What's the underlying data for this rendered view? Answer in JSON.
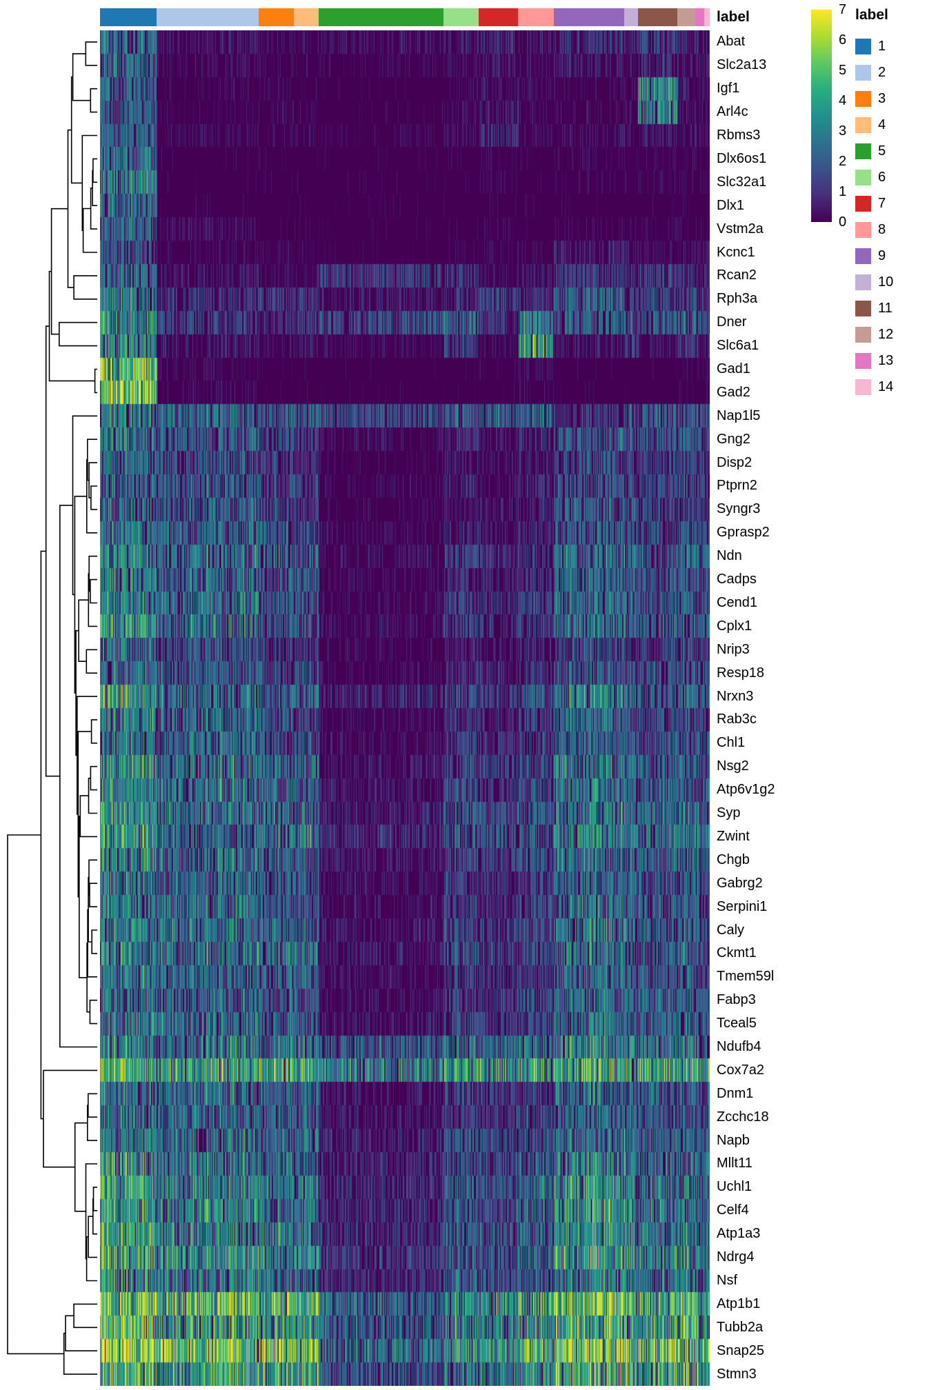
{
  "figure": {
    "annotation_title": "label",
    "legend_title": "label"
  },
  "chart_data": {
    "type": "heatmap",
    "title": "",
    "value_range": [
      0,
      7
    ],
    "colormap": {
      "name": "viridis",
      "domain": [
        0,
        7
      ],
      "stops": [
        "#440154",
        "#472d7b",
        "#3b528b",
        "#2c728e",
        "#21918c",
        "#28ae80",
        "#5ec962",
        "#addc30",
        "#fde725"
      ]
    },
    "colorbar": {
      "ticks": [
        "7",
        "6",
        "5",
        "4",
        "3",
        "2",
        "1",
        "0"
      ]
    },
    "legend": {
      "title": "label",
      "position": "right"
    },
    "column_annotation_title": "label",
    "clusters": [
      {
        "label": "1",
        "color": "#1f77b4",
        "fraction": 0.093
      },
      {
        "label": "2",
        "color": "#aec7e8",
        "fraction": 0.167
      },
      {
        "label": "3",
        "color": "#ff7f0e",
        "fraction": 0.058
      },
      {
        "label": "4",
        "color": "#ffbb78",
        "fraction": 0.041
      },
      {
        "label": "5",
        "color": "#2ca02c",
        "fraction": 0.204
      },
      {
        "label": "6",
        "color": "#98df8a",
        "fraction": 0.058
      },
      {
        "label": "7",
        "color": "#d62728",
        "fraction": 0.065
      },
      {
        "label": "8",
        "color": "#ff9896",
        "fraction": 0.058
      },
      {
        "label": "9",
        "color": "#9467bd",
        "fraction": 0.116
      },
      {
        "label": "10",
        "color": "#c5b0d5",
        "fraction": 0.022
      },
      {
        "label": "11",
        "color": "#8c564b",
        "fraction": 0.065
      },
      {
        "label": "12",
        "color": "#c49c94",
        "fraction": 0.029
      },
      {
        "label": "13",
        "color": "#e377c2",
        "fraction": 0.015
      },
      {
        "label": "14",
        "color": "#f7b6d2",
        "fraction": 0.009
      }
    ],
    "genes": [
      "Abat",
      "Slc2a13",
      "Igf1",
      "Arl4c",
      "Rbms3",
      "Dlx6os1",
      "Slc32a1",
      "Dlx1",
      "Vstm2a",
      "Kcnc1",
      "Rcan2",
      "Rph3a",
      "Dner",
      "Slc6a1",
      "Gad1",
      "Gad2",
      "Nap1l5",
      "Gng2",
      "Disp2",
      "Ptprn2",
      "Syngr3",
      "Gprasp2",
      "Ndn",
      "Cadps",
      "Cend1",
      "Cplx1",
      "Nrip3",
      "Resp18",
      "Nrxn3",
      "Rab3c",
      "Chl1",
      "Nsg2",
      "Atp6v1g2",
      "Syp",
      "Zwint",
      "Chgb",
      "Gabrg2",
      "Serpini1",
      "Caly",
      "Ckmt1",
      "Tmem59l",
      "Fabp3",
      "Tceal5",
      "Ndufb4",
      "Cox7a2",
      "Dnm1",
      "Zcchc18",
      "Napb",
      "Mllt11",
      "Uchl1",
      "Celf4",
      "Atp1a3",
      "Ndrg4",
      "Nsf",
      "Atp1b1",
      "Tubb2a",
      "Snap25",
      "Stmn3"
    ],
    "cluster_mean_expression": [
      [
        2.5,
        0.7,
        0.5,
        0.5,
        0.6,
        0.8,
        1.0,
        0.8,
        1.2,
        1.0,
        1.5,
        1.2,
        1.0,
        1.0
      ],
      [
        2.5,
        0.5,
        0.4,
        0.4,
        0.3,
        0.5,
        0.8,
        0.5,
        0.8,
        0.6,
        1.0,
        0.8,
        0.8,
        0.8
      ],
      [
        2.2,
        0.3,
        0.3,
        0.3,
        0.2,
        0.4,
        0.5,
        0.4,
        0.4,
        0.5,
        3.5,
        0.8,
        0.5,
        0.5
      ],
      [
        2.0,
        0.3,
        0.4,
        0.3,
        0.2,
        0.4,
        0.8,
        0.5,
        0.4,
        0.5,
        3.0,
        0.8,
        0.5,
        0.5
      ],
      [
        2.2,
        0.4,
        0.4,
        0.4,
        0.3,
        0.5,
        1.2,
        0.6,
        0.6,
        0.5,
        0.8,
        0.6,
        0.5,
        0.5
      ],
      [
        2.8,
        0.2,
        0.15,
        0.15,
        0.1,
        0.2,
        0.3,
        0.2,
        0.3,
        0.2,
        0.3,
        0.3,
        0.3,
        0.3
      ],
      [
        3.2,
        0.2,
        0.15,
        0.15,
        0.1,
        0.2,
        0.3,
        0.2,
        0.3,
        0.2,
        0.3,
        0.3,
        0.3,
        0.3
      ],
      [
        2.8,
        0.2,
        0.1,
        0.1,
        0.1,
        0.15,
        0.2,
        0.2,
        0.2,
        0.2,
        0.2,
        0.2,
        0.2,
        0.2
      ],
      [
        2.5,
        0.6,
        0.2,
        0.2,
        0.1,
        0.2,
        0.3,
        0.2,
        0.3,
        0.3,
        0.3,
        0.3,
        0.3,
        0.3
      ],
      [
        2.2,
        0.3,
        0.3,
        0.3,
        0.2,
        0.3,
        0.4,
        0.3,
        1.0,
        0.8,
        0.5,
        0.8,
        0.5,
        0.5
      ],
      [
        2.5,
        0.8,
        0.5,
        0.5,
        1.5,
        1.2,
        0.5,
        0.8,
        1.5,
        1.0,
        1.8,
        1.2,
        1.0,
        1.0
      ],
      [
        2.8,
        1.2,
        1.5,
        1.2,
        0.8,
        1.2,
        1.5,
        1.2,
        2.2,
        1.5,
        1.5,
        1.8,
        1.5,
        1.2
      ],
      [
        3.5,
        1.5,
        1.2,
        1.5,
        1.8,
        2.5,
        1.2,
        3.2,
        2.5,
        2.2,
        2.0,
        2.2,
        2.0,
        2.0
      ],
      [
        3.2,
        0.8,
        0.5,
        0.8,
        0.5,
        1.5,
        0.5,
        3.8,
        0.8,
        1.2,
        0.8,
        1.5,
        1.0,
        1.0
      ],
      [
        5.0,
        0.4,
        0.15,
        0.15,
        0.1,
        0.2,
        0.2,
        0.5,
        0.2,
        0.2,
        0.2,
        0.3,
        0.3,
        0.3
      ],
      [
        5.2,
        0.4,
        0.15,
        0.15,
        0.1,
        0.2,
        0.2,
        0.4,
        0.2,
        0.2,
        0.2,
        0.3,
        0.3,
        0.3
      ],
      [
        3.0,
        2.5,
        2.2,
        2.2,
        1.8,
        2.2,
        2.2,
        2.2,
        1.2,
        2.0,
        2.2,
        2.2,
        2.0,
        2.0
      ],
      [
        2.8,
        2.2,
        1.8,
        1.5,
        0.5,
        1.2,
        0.8,
        1.2,
        2.2,
        1.8,
        1.8,
        2.0,
        1.8,
        1.8
      ],
      [
        2.5,
        2.0,
        1.5,
        1.2,
        0.3,
        0.8,
        0.5,
        0.8,
        1.8,
        1.5,
        1.5,
        1.5,
        1.5,
        1.2
      ],
      [
        2.5,
        2.2,
        1.8,
        1.5,
        0.4,
        1.0,
        0.6,
        1.0,
        2.0,
        1.5,
        1.5,
        1.8,
        1.5,
        1.5
      ],
      [
        2.8,
        2.2,
        1.8,
        1.5,
        0.3,
        0.8,
        0.8,
        0.8,
        2.2,
        1.8,
        1.5,
        1.8,
        1.5,
        1.5
      ],
      [
        2.8,
        2.5,
        2.0,
        1.8,
        0.4,
        1.0,
        0.8,
        1.0,
        2.2,
        2.0,
        1.8,
        2.0,
        1.8,
        1.5
      ],
      [
        3.2,
        2.8,
        2.5,
        2.2,
        0.6,
        1.5,
        1.2,
        1.5,
        2.8,
        2.2,
        2.2,
        2.5,
        2.2,
        2.0
      ],
      [
        3.0,
        2.5,
        2.2,
        2.0,
        0.5,
        1.2,
        1.0,
        1.2,
        2.5,
        2.0,
        1.8,
        2.2,
        2.0,
        1.8
      ],
      [
        3.0,
        2.8,
        2.2,
        2.0,
        0.5,
        1.5,
        1.2,
        1.5,
        2.5,
        2.2,
        2.0,
        2.2,
        2.0,
        2.0
      ],
      [
        3.5,
        2.8,
        2.2,
        2.2,
        0.6,
        1.5,
        1.2,
        1.5,
        2.8,
        2.2,
        2.2,
        2.5,
        2.2,
        2.0
      ],
      [
        2.8,
        2.0,
        1.5,
        1.2,
        0.4,
        1.0,
        0.8,
        1.0,
        2.0,
        1.5,
        1.5,
        1.8,
        1.5,
        1.2
      ],
      [
        2.8,
        2.2,
        1.8,
        1.8,
        0.4,
        1.2,
        1.0,
        1.2,
        2.2,
        1.8,
        1.8,
        2.0,
        1.8,
        1.5
      ],
      [
        3.8,
        2.8,
        2.2,
        2.2,
        1.0,
        2.0,
        1.5,
        2.0,
        3.0,
        2.5,
        2.2,
        2.5,
        2.2,
        2.2
      ],
      [
        3.0,
        2.5,
        2.0,
        1.8,
        0.5,
        1.2,
        1.0,
        1.5,
        2.5,
        2.0,
        1.8,
        2.0,
        1.8,
        1.8
      ],
      [
        2.8,
        2.5,
        2.0,
        1.8,
        0.6,
        1.5,
        1.2,
        1.5,
        2.5,
        2.0,
        2.0,
        2.2,
        2.0,
        1.8
      ],
      [
        3.5,
        3.0,
        2.5,
        2.5,
        0.8,
        1.8,
        1.5,
        1.8,
        3.0,
        2.5,
        2.2,
        2.5,
        2.2,
        2.2
      ],
      [
        3.2,
        2.8,
        2.5,
        2.2,
        0.8,
        1.8,
        1.5,
        1.8,
        2.8,
        2.2,
        2.2,
        2.5,
        2.2,
        2.0
      ],
      [
        3.5,
        3.0,
        2.8,
        2.5,
        1.0,
        2.0,
        1.8,
        2.0,
        3.0,
        2.5,
        2.5,
        2.8,
        2.5,
        2.2
      ],
      [
        4.0,
        2.5,
        3.0,
        3.0,
        1.2,
        2.2,
        2.0,
        2.2,
        3.2,
        2.8,
        2.8,
        3.0,
        2.8,
        2.5
      ],
      [
        3.2,
        2.8,
        2.5,
        2.2,
        0.8,
        1.8,
        1.5,
        1.8,
        2.8,
        2.2,
        2.2,
        2.5,
        2.2,
        2.0
      ],
      [
        3.0,
        2.5,
        2.2,
        2.0,
        0.6,
        1.5,
        1.2,
        1.5,
        2.5,
        2.2,
        2.0,
        2.2,
        2.0,
        1.8
      ],
      [
        3.0,
        2.8,
        2.2,
        2.2,
        0.6,
        1.5,
        1.2,
        1.8,
        2.8,
        2.2,
        2.2,
        2.5,
        2.2,
        2.0
      ],
      [
        3.2,
        2.8,
        2.5,
        2.2,
        0.8,
        1.8,
        1.5,
        1.8,
        3.0,
        2.5,
        2.2,
        2.5,
        2.2,
        2.0
      ],
      [
        3.2,
        2.8,
        2.8,
        2.5,
        0.8,
        1.8,
        1.5,
        1.8,
        2.8,
        2.5,
        2.2,
        2.5,
        2.2,
        2.2
      ],
      [
        3.0,
        2.5,
        2.2,
        2.2,
        0.6,
        1.5,
        1.2,
        1.5,
        2.5,
        2.2,
        2.0,
        2.2,
        2.0,
        1.8
      ],
      [
        2.8,
        2.5,
        2.2,
        2.0,
        0.6,
        1.5,
        1.5,
        1.8,
        2.5,
        2.2,
        2.2,
        2.8,
        2.2,
        2.0
      ],
      [
        3.0,
        2.8,
        2.2,
        2.2,
        0.8,
        1.8,
        1.5,
        1.8,
        2.8,
        2.2,
        2.2,
        2.5,
        2.2,
        2.0
      ],
      [
        3.2,
        3.0,
        3.0,
        2.8,
        2.2,
        2.8,
        2.5,
        2.8,
        3.2,
        3.0,
        2.8,
        3.0,
        2.8,
        2.8
      ],
      [
        4.2,
        4.0,
        4.0,
        3.8,
        3.2,
        3.8,
        3.5,
        3.8,
        4.2,
        4.0,
        3.8,
        4.0,
        3.8,
        3.8
      ],
      [
        3.0,
        2.8,
        2.5,
        2.2,
        0.8,
        1.8,
        1.5,
        1.8,
        2.8,
        2.5,
        2.2,
        2.5,
        2.2,
        2.2
      ],
      [
        2.8,
        2.5,
        2.2,
        2.0,
        0.8,
        1.5,
        1.5,
        1.8,
        2.5,
        2.2,
        2.0,
        2.2,
        2.0,
        2.0
      ],
      [
        3.0,
        2.8,
        2.5,
        2.5,
        1.0,
        2.0,
        1.8,
        2.0,
        2.8,
        2.5,
        2.5,
        2.5,
        2.2,
        2.2
      ],
      [
        3.5,
        3.0,
        2.8,
        2.5,
        1.0,
        2.0,
        1.8,
        2.2,
        3.2,
        2.8,
        2.5,
        2.8,
        2.5,
        2.5
      ],
      [
        3.8,
        3.2,
        3.0,
        2.8,
        1.2,
        2.2,
        2.0,
        2.5,
        3.5,
        3.0,
        2.8,
        3.0,
        2.8,
        2.8
      ],
      [
        3.8,
        3.2,
        2.8,
        2.8,
        1.2,
        2.2,
        2.0,
        2.5,
        3.5,
        3.0,
        2.8,
        3.0,
        2.8,
        2.5
      ],
      [
        4.0,
        3.2,
        3.0,
        2.8,
        1.2,
        2.2,
        2.0,
        2.5,
        3.5,
        3.0,
        2.8,
        3.2,
        2.8,
        2.8
      ],
      [
        4.0,
        3.5,
        3.0,
        3.0,
        1.5,
        2.5,
        2.2,
        2.8,
        3.8,
        3.2,
        3.0,
        3.2,
        3.0,
        2.8
      ],
      [
        3.5,
        3.0,
        2.8,
        2.5,
        1.2,
        2.2,
        2.0,
        2.2,
        3.2,
        2.8,
        2.8,
        2.8,
        2.5,
        2.5
      ],
      [
        5.5,
        4.5,
        4.5,
        4.2,
        2.5,
        3.5,
        3.5,
        4.0,
        5.0,
        4.5,
        4.2,
        4.5,
        4.2,
        4.0
      ],
      [
        4.5,
        4.0,
        3.8,
        3.5,
        2.2,
        3.2,
        3.0,
        3.5,
        4.2,
        3.8,
        3.8,
        4.0,
        3.8,
        3.5
      ],
      [
        5.8,
        5.0,
        5.0,
        4.8,
        2.8,
        4.0,
        3.8,
        4.5,
        5.5,
        5.0,
        4.8,
        5.2,
        5.0,
        4.5
      ],
      [
        4.5,
        4.0,
        3.8,
        3.8,
        2.0,
        3.0,
        3.0,
        3.5,
        4.2,
        3.8,
        3.8,
        4.0,
        3.8,
        3.5
      ]
    ]
  }
}
